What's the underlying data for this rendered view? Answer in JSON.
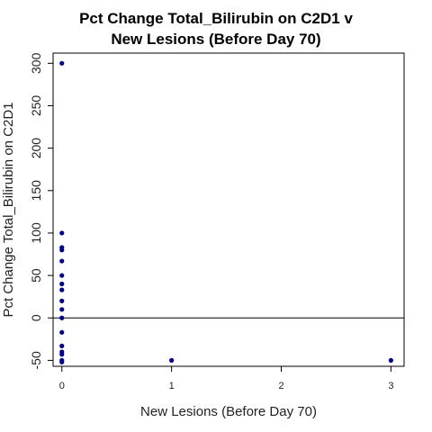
{
  "chart_data": {
    "type": "scatter",
    "title_lines": [
      "Pct Change Total_Bilirubin on C2D1 v",
      "New Lesions (Before Day 70)"
    ],
    "xlabel": "New Lesions (Before Day 70)",
    "ylabel": "Pct Change Total_Bilirubin on C2D1",
    "xlim": [
      -0.08,
      3.12
    ],
    "ylim": [
      -57,
      312
    ],
    "x_ticks": [
      0,
      1,
      2,
      3
    ],
    "x_tick_labels": [
      "0",
      "1",
      "2",
      "3"
    ],
    "y_ticks": [
      -50,
      0,
      50,
      100,
      150,
      200,
      250,
      300
    ],
    "y_tick_labels": [
      "-50",
      "0",
      "50",
      "100",
      "150",
      "200",
      "250",
      "300"
    ],
    "reference_line_y": 0,
    "point_color": "#00008b",
    "grid": false,
    "points": [
      {
        "x": 0,
        "y": 300
      },
      {
        "x": 0,
        "y": 100
      },
      {
        "x": 0,
        "y": 83
      },
      {
        "x": 0,
        "y": 80
      },
      {
        "x": 0,
        "y": 67
      },
      {
        "x": 0,
        "y": 50
      },
      {
        "x": 0,
        "y": 40
      },
      {
        "x": 0,
        "y": 33
      },
      {
        "x": 0,
        "y": 20
      },
      {
        "x": 0,
        "y": 10
      },
      {
        "x": 0,
        "y": 0
      },
      {
        "x": 0,
        "y": -17
      },
      {
        "x": 0,
        "y": -33
      },
      {
        "x": 0,
        "y": -40
      },
      {
        "x": 0,
        "y": -43
      },
      {
        "x": 0,
        "y": -50
      },
      {
        "x": 0,
        "y": -52
      },
      {
        "x": 1,
        "y": -50
      },
      {
        "x": 3,
        "y": -50
      }
    ]
  }
}
